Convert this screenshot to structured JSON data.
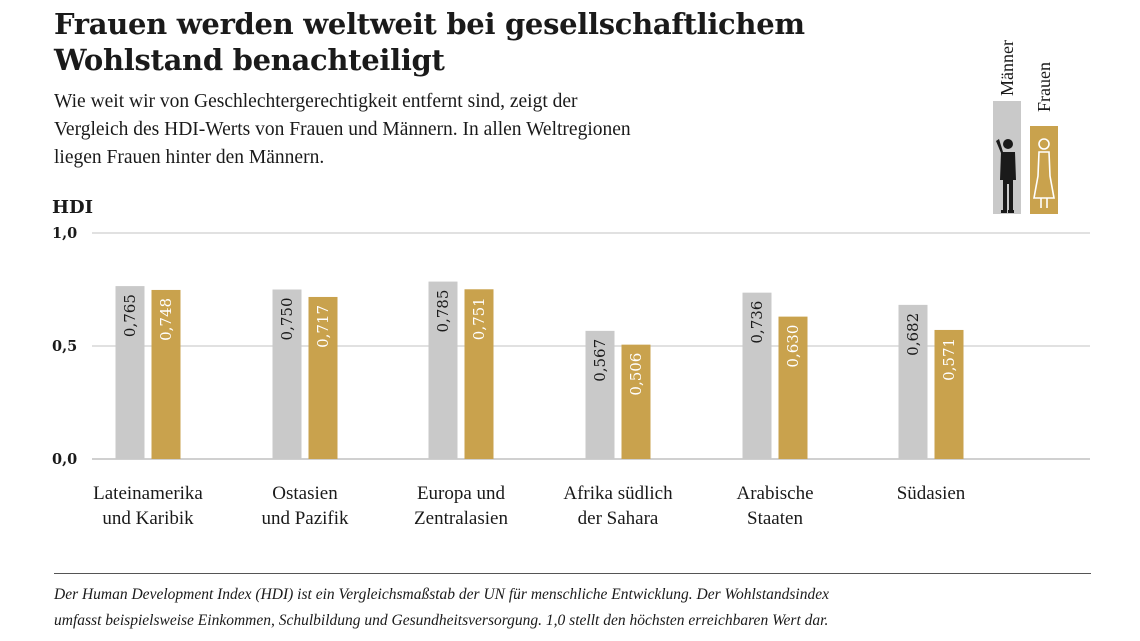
{
  "title_lines": [
    "Frauen werden weltweit bei gesellschaftlichem",
    "Wohlstand benachteiligt"
  ],
  "subtitle_lines": [
    "Wie weit wir von Geschlechtergerechtigkeit entfernt sind, zeigt der",
    "Vergleich des HDI-Werts von Frauen und Männern. In allen Weltregionen",
    "liegen Frauen hinter den Männern."
  ],
  "colors": {
    "men": "#c9c9c9",
    "women": "#c9a24d",
    "grid": "#cfcfcf",
    "text": "#1a1a1a"
  },
  "legend": {
    "men_label": "Männer",
    "women_label": "Frauen",
    "men_icon": "man-figure-icon",
    "women_icon": "woman-figure-icon"
  },
  "chart_data": {
    "type": "bar",
    "ylabel": "HDI",
    "ylim": [
      0,
      1
    ],
    "yticks": [
      {
        "value": 0,
        "label": "0,0"
      },
      {
        "value": 0.5,
        "label": "0,5"
      },
      {
        "value": 1,
        "label": "1,0"
      }
    ],
    "grid": true,
    "categories": [
      [
        "Lateinamerika",
        "und Karibik"
      ],
      [
        "Ostasien",
        "und Pazifik"
      ],
      [
        "Europa und",
        "Zentralasien"
      ],
      [
        "Afrika südlich",
        "der Sahara"
      ],
      [
        "Arabische",
        "Staaten"
      ],
      [
        "Südasien"
      ]
    ],
    "series": [
      {
        "name": "Männer",
        "values": [
          0.765,
          0.75,
          0.785,
          0.567,
          0.736,
          0.682
        ],
        "value_labels": [
          "0,765",
          "0,750",
          "0,785",
          "0,567",
          "0,736",
          "0,682"
        ]
      },
      {
        "name": "Frauen",
        "values": [
          0.748,
          0.717,
          0.751,
          0.506,
          0.63,
          0.571
        ],
        "value_labels": [
          "0,748",
          "0,717",
          "0,751",
          "0,506",
          "0,630",
          "0,571"
        ]
      }
    ]
  },
  "footnote_lines": [
    "Der Human Development Index (HDI) ist ein Vergleichsmaßstab der UN für menschliche Entwicklung. Der Wohlstandsindex",
    "umfasst beispielsweise Einkommen, Schulbildung und Gesundheitsversorgung. 1,0 stellt den höchsten erreichbaren Wert dar."
  ]
}
